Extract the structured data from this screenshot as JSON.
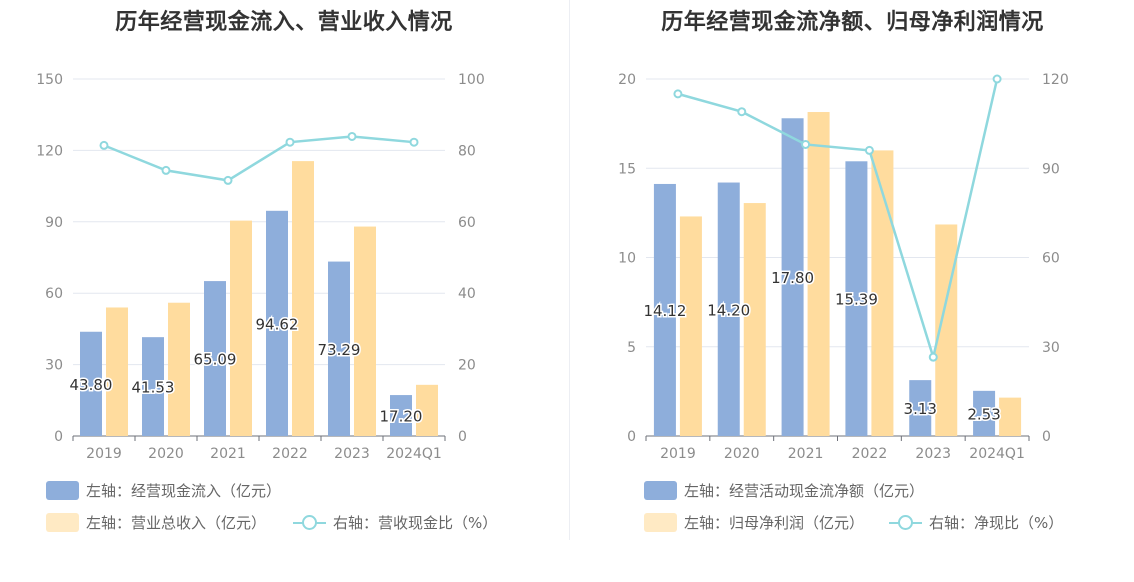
{
  "chart_data": [
    {
      "type": "bar",
      "title": "历年经营现金流入、营业收入情况",
      "categories": [
        "2019",
        "2020",
        "2021",
        "2022",
        "2023",
        "2024Q1"
      ],
      "left_axis": {
        "min": 0,
        "max": 150,
        "ticks": [
          "0",
          "30",
          "60",
          "90",
          "120",
          "150"
        ]
      },
      "right_axis": {
        "min": 0,
        "max": 100,
        "ticks": [
          "0",
          "20",
          "40",
          "60",
          "80",
          "100"
        ]
      },
      "grid": true,
      "legend_position": "bottom-left",
      "series": [
        {
          "name": "左轴：经营现金流入（亿元）",
          "type": "bar",
          "axis": "left",
          "color": "#8eaedb",
          "values": [
            43.8,
            41.53,
            65.09,
            94.62,
            73.29,
            17.2
          ],
          "labels": [
            "43.80",
            "41.53",
            "65.09",
            "94.62",
            "73.29",
            "17.20"
          ]
        },
        {
          "name": "左轴：营业总收入（亿元）",
          "type": "bar",
          "axis": "left",
          "color": "#ffdc9e",
          "values": [
            54.0,
            56.0,
            90.5,
            115.5,
            88.0,
            21.5
          ]
        },
        {
          "name": "右轴：营收现金比（%）",
          "type": "line",
          "axis": "right",
          "color": "#8fd8de",
          "values": [
            81.4,
            74.4,
            71.6,
            82.3,
            83.9,
            82.3
          ]
        }
      ]
    },
    {
      "type": "bar",
      "title": "历年经营现金流净额、归母净利润情况",
      "categories": [
        "2019",
        "2020",
        "2021",
        "2022",
        "2023",
        "2024Q1"
      ],
      "left_axis": {
        "min": 0,
        "max": 20,
        "ticks": [
          "0",
          "5",
          "10",
          "15",
          "20"
        ]
      },
      "right_axis": {
        "min": 0,
        "max": 120,
        "ticks": [
          "0",
          "30",
          "60",
          "90",
          "120"
        ]
      },
      "grid": true,
      "legend_position": "bottom-left",
      "series": [
        {
          "name": "左轴：经营活动现金流净额（亿元）",
          "type": "bar",
          "axis": "left",
          "color": "#8eaedb",
          "values": [
            14.12,
            14.2,
            17.8,
            15.39,
            3.13,
            2.53
          ],
          "labels": [
            "14.12",
            "14.20",
            "17.80",
            "15.39",
            "3.13",
            "2.53"
          ]
        },
        {
          "name": "左轴：归母净利润（亿元）",
          "type": "bar",
          "axis": "left",
          "color": "#ffdc9e",
          "values": [
            12.3,
            13.05,
            18.15,
            16.0,
            11.85,
            2.15
          ]
        },
        {
          "name": "右轴：净现比（%）",
          "type": "line",
          "axis": "right",
          "color": "#8fd8de",
          "values": [
            115,
            109,
            98,
            96,
            26.5,
            120
          ]
        }
      ]
    }
  ]
}
